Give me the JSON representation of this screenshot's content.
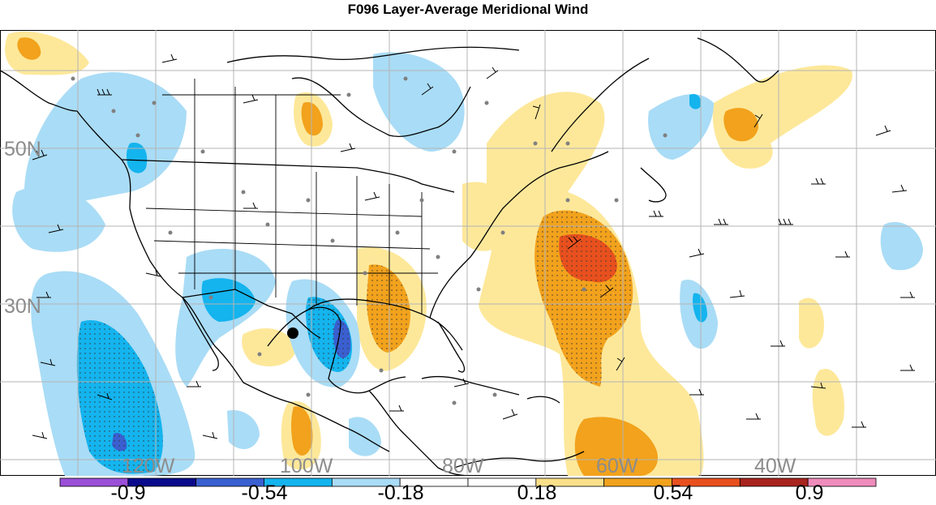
{
  "title": "F096 Layer-Average Meridional Wind",
  "latitude_labels": [
    "50N",
    "30N"
  ],
  "longitude_labels": [
    "120W",
    "100W",
    "80W",
    "60W",
    "40W"
  ],
  "colorbar": {
    "tick_labels": [
      "-0.9",
      "-0.54",
      "-0.18",
      "0.18",
      "0.54",
      "0.9"
    ],
    "colors": [
      "#9b4fd8",
      "#0a0a8c",
      "#3a5fd0",
      "#14b4ee",
      "#a9dcf6",
      "#ffffff",
      "#ffffff",
      "#fbe08a",
      "#f2a21c",
      "#e8501e",
      "#a8241e",
      "#f08cbc"
    ]
  },
  "shading": {
    "positive_light": "#fde89a",
    "positive_mid": "#f2a21c",
    "positive_strong": "#e8501e",
    "negative_light": "#a9dcf6",
    "negative_mid": "#14b4ee",
    "negative_strong": "#3a5fd0"
  },
  "grid_color": "#b4b4b4",
  "label_color": "#8c8c8c",
  "marker_color": "#000000"
}
